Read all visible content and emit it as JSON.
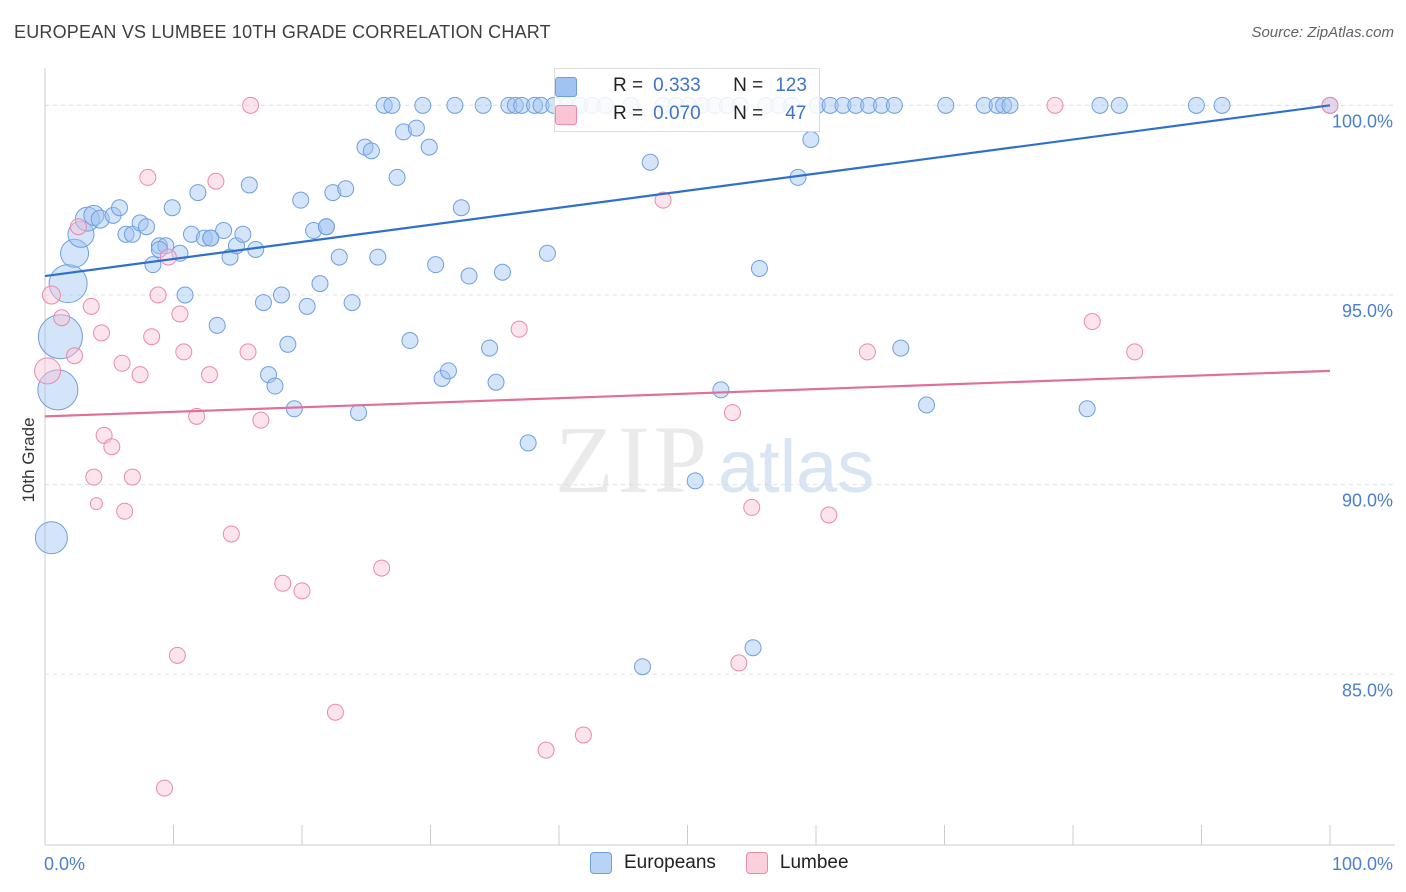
{
  "title": "EUROPEAN VS LUMBEE 10TH GRADE CORRELATION CHART",
  "source": "Source: ZipAtlas.com",
  "watermark": {
    "zip": "ZIP",
    "atlas": "atlas"
  },
  "legend_top": {
    "rows": [
      {
        "r_label": "R =",
        "r_value": "0.333",
        "n_label": "N =",
        "n_value": "123",
        "color": "#9fc3f2",
        "border": "#6f9fe0"
      },
      {
        "r_label": "R =",
        "r_value": "0.070",
        "n_label": "N =",
        "n_value": "47",
        "color": "#f9c4d4",
        "border": "#eb8aa8"
      }
    ]
  },
  "legend_bottom": [
    {
      "label": "Europeans",
      "color": "#b9d3f5",
      "border": "#6f9fe0"
    },
    {
      "label": "Lumbee",
      "color": "#fbd0dd",
      "border": "#eb8aa8"
    }
  ],
  "colors": {
    "blue_line": "#2f6fd0",
    "pink_line": "#e0709a",
    "grid": "#dde3ea"
  },
  "chart_data": {
    "type": "scatter",
    "title": "EUROPEAN VS LUMBEE 10TH GRADE CORRELATION CHART",
    "xlabel": "",
    "ylabel": "10th Grade",
    "xlim": [
      0,
      100
    ],
    "ylim": [
      80.5,
      100.8
    ],
    "x_tick_labels": [
      "0.0%",
      "100.0%"
    ],
    "y_ticks": [
      85,
      90,
      95,
      100
    ],
    "y_tick_labels": [
      "85.0%",
      "90.0%",
      "95.0%",
      "100.0%"
    ],
    "grid": true,
    "series": [
      {
        "name": "Europeans",
        "trend": {
          "x": [
            0,
            100
          ],
          "y": [
            95.5,
            100.0
          ]
        },
        "points": [
          [
            0.5,
            88.6,
            1.6
          ],
          [
            1.0,
            92.5,
            2.0
          ],
          [
            1.2,
            93.9,
            2.2
          ],
          [
            1.8,
            95.3,
            1.9
          ],
          [
            2.3,
            96.1,
            1.4
          ],
          [
            2.8,
            96.6,
            1.3
          ],
          [
            3.3,
            97.0,
            1.2
          ],
          [
            3.8,
            97.1,
            1.0
          ],
          [
            4.3,
            97.0,
            0.9
          ],
          [
            5.3,
            97.1,
            0.8
          ],
          [
            5.8,
            97.3,
            0.8
          ],
          [
            6.3,
            96.6,
            0.8
          ],
          [
            6.8,
            96.6,
            0.8
          ],
          [
            7.4,
            96.9,
            0.8
          ],
          [
            7.9,
            96.8,
            0.8
          ],
          [
            8.4,
            95.8,
            0.8
          ],
          [
            8.9,
            96.3,
            0.8
          ],
          [
            9.4,
            96.3,
            0.8
          ],
          [
            9.9,
            97.3,
            0.8
          ],
          [
            10.5,
            96.1,
            0.8
          ],
          [
            10.9,
            95.0,
            0.8
          ],
          [
            11.4,
            96.6,
            0.8
          ],
          [
            11.9,
            97.7,
            0.8
          ],
          [
            12.4,
            96.5,
            0.8
          ],
          [
            12.9,
            96.5,
            0.8
          ],
          [
            13.4,
            94.2,
            0.8
          ],
          [
            13.9,
            96.7,
            0.8
          ],
          [
            14.4,
            96.0,
            0.8
          ],
          [
            14.9,
            96.3,
            0.8
          ],
          [
            15.4,
            96.6,
            0.8
          ],
          [
            15.9,
            97.9,
            0.8
          ],
          [
            16.4,
            96.2,
            0.8
          ],
          [
            17.0,
            94.8,
            0.8
          ],
          [
            17.4,
            92.9,
            0.8
          ],
          [
            17.9,
            92.6,
            0.8
          ],
          [
            18.4,
            95.0,
            0.8
          ],
          [
            18.9,
            93.7,
            0.8
          ],
          [
            19.4,
            92.0,
            0.8
          ],
          [
            19.9,
            97.5,
            0.8
          ],
          [
            20.4,
            94.7,
            0.8
          ],
          [
            20.9,
            96.7,
            0.8
          ],
          [
            21.4,
            95.3,
            0.8
          ],
          [
            21.9,
            96.8,
            0.8
          ],
          [
            22.4,
            97.7,
            0.8
          ],
          [
            22.9,
            96.0,
            0.8
          ],
          [
            23.4,
            97.8,
            0.8
          ],
          [
            23.9,
            94.8,
            0.8
          ],
          [
            24.4,
            91.9,
            0.8
          ],
          [
            24.9,
            98.9,
            0.8
          ],
          [
            25.4,
            98.8,
            0.8
          ],
          [
            25.9,
            96.0,
            0.8
          ],
          [
            26.4,
            100.0,
            0.8
          ],
          [
            27.0,
            100.0,
            0.8
          ],
          [
            27.4,
            98.1,
            0.8
          ],
          [
            27.9,
            99.3,
            0.8
          ],
          [
            28.4,
            93.8,
            0.8
          ],
          [
            28.9,
            99.4,
            0.8
          ],
          [
            29.4,
            100.0,
            0.8
          ],
          [
            29.9,
            98.9,
            0.8
          ],
          [
            30.4,
            95.8,
            0.8
          ],
          [
            30.9,
            92.8,
            0.8
          ],
          [
            31.4,
            93.0,
            0.8
          ],
          [
            31.9,
            100.0,
            0.8
          ],
          [
            32.4,
            97.3,
            0.8
          ],
          [
            33.0,
            95.5,
            0.8
          ],
          [
            34.1,
            100.0,
            0.8
          ],
          [
            34.6,
            93.6,
            0.8
          ],
          [
            35.1,
            92.7,
            0.8
          ],
          [
            35.6,
            95.6,
            0.8
          ],
          [
            36.1,
            100.0,
            0.8
          ],
          [
            36.6,
            100.0,
            0.8
          ],
          [
            37.1,
            100.0,
            0.8
          ],
          [
            37.6,
            91.1,
            0.8
          ],
          [
            38.1,
            100.0,
            0.8
          ],
          [
            38.6,
            100.0,
            0.8
          ],
          [
            39.1,
            96.1,
            0.8
          ],
          [
            39.6,
            100.0,
            0.8
          ],
          [
            40.6,
            100.0,
            0.8
          ],
          [
            41.6,
            100.0,
            0.8
          ],
          [
            42.6,
            100.0,
            0.8
          ],
          [
            43.6,
            100.0,
            0.8
          ],
          [
            45.6,
            100.0,
            0.8
          ],
          [
            46.5,
            85.2,
            0.8
          ],
          [
            47.1,
            98.5,
            0.8
          ],
          [
            48.1,
            100.0,
            0.8
          ],
          [
            49.1,
            100.0,
            0.8
          ],
          [
            50.1,
            100.0,
            0.8
          ],
          [
            50.6,
            90.1,
            0.8
          ],
          [
            51.1,
            100.0,
            0.8
          ],
          [
            52.1,
            100.0,
            0.8
          ],
          [
            52.6,
            92.5,
            0.8
          ],
          [
            53.1,
            100.0,
            0.8
          ],
          [
            54.1,
            100.0,
            0.8
          ],
          [
            55.1,
            85.7,
            0.8
          ],
          [
            55.6,
            95.7,
            0.8
          ],
          [
            56.1,
            100.0,
            0.8
          ],
          [
            57.1,
            100.0,
            0.8
          ],
          [
            58.1,
            100.0,
            0.8
          ],
          [
            58.6,
            98.1,
            0.8
          ],
          [
            60.1,
            100.0,
            0.8
          ],
          [
            61.1,
            100.0,
            0.8
          ],
          [
            62.1,
            100.0,
            0.8
          ],
          [
            63.1,
            100.0,
            0.8
          ],
          [
            64.1,
            100.0,
            0.8
          ],
          [
            65.1,
            100.0,
            0.8
          ],
          [
            66.1,
            100.0,
            0.8
          ],
          [
            66.6,
            93.6,
            0.8
          ],
          [
            68.6,
            92.1,
            0.8
          ],
          [
            70.1,
            100.0,
            0.8
          ],
          [
            73.1,
            100.0,
            0.8
          ],
          [
            74.1,
            100.0,
            0.8
          ],
          [
            74.6,
            100.0,
            0.8
          ],
          [
            75.1,
            100.0,
            0.8
          ],
          [
            81.1,
            92.0,
            0.8
          ],
          [
            82.1,
            100.0,
            0.8
          ],
          [
            83.6,
            100.0,
            0.8
          ],
          [
            89.6,
            100.0,
            0.8
          ],
          [
            91.6,
            100.0,
            0.8
          ],
          [
            100.0,
            100.0,
            0.8
          ],
          [
            59.6,
            99.1,
            0.8
          ],
          [
            8.9,
            96.2,
            0.8
          ],
          [
            12.9,
            96.5,
            0.8
          ],
          [
            21.9,
            96.8,
            0.8
          ]
        ]
      },
      {
        "name": "Lumbee",
        "trend": {
          "x": [
            0,
            100
          ],
          "y": [
            91.8,
            93.0
          ]
        },
        "points": [
          [
            0.2,
            93.0,
            1.3
          ],
          [
            0.5,
            95.0,
            0.9
          ],
          [
            1.3,
            94.4,
            0.8
          ],
          [
            2.3,
            93.4,
            0.8
          ],
          [
            2.6,
            96.8,
            0.8
          ],
          [
            3.6,
            94.7,
            0.8
          ],
          [
            3.8,
            90.2,
            0.8
          ],
          [
            4.4,
            94.0,
            0.8
          ],
          [
            4.6,
            91.3,
            0.8
          ],
          [
            5.2,
            91.0,
            0.8
          ],
          [
            6.0,
            93.2,
            0.8
          ],
          [
            6.2,
            89.3,
            0.8
          ],
          [
            6.8,
            90.2,
            0.8
          ],
          [
            7.4,
            92.9,
            0.8
          ],
          [
            8.0,
            98.1,
            0.8
          ],
          [
            8.3,
            93.9,
            0.8
          ],
          [
            8.8,
            95.0,
            0.8
          ],
          [
            9.3,
            82.0,
            0.8
          ],
          [
            9.6,
            96.0,
            0.8
          ],
          [
            10.3,
            85.5,
            0.8
          ],
          [
            10.8,
            93.5,
            0.8
          ],
          [
            11.8,
            91.8,
            0.8
          ],
          [
            12.8,
            92.9,
            0.8
          ],
          [
            13.3,
            98.0,
            0.8
          ],
          [
            14.5,
            88.7,
            0.8
          ],
          [
            15.8,
            93.5,
            0.8
          ],
          [
            16.8,
            91.7,
            0.8
          ],
          [
            18.5,
            87.4,
            0.8
          ],
          [
            20.0,
            87.2,
            0.8
          ],
          [
            22.6,
            84.0,
            0.8
          ],
          [
            26.2,
            87.8,
            0.8
          ],
          [
            36.9,
            94.1,
            0.8
          ],
          [
            39.0,
            83.0,
            0.8
          ],
          [
            41.9,
            83.4,
            0.8
          ],
          [
            48.1,
            97.5,
            0.8
          ],
          [
            53.5,
            91.9,
            0.8
          ],
          [
            54.0,
            85.3,
            0.8
          ],
          [
            55.0,
            89.4,
            0.8
          ],
          [
            61.0,
            89.2,
            0.8
          ],
          [
            64.0,
            93.5,
            0.8
          ],
          [
            78.6,
            100.0,
            0.8
          ],
          [
            81.5,
            94.3,
            0.8
          ],
          [
            84.8,
            93.5,
            0.8
          ],
          [
            100.0,
            100.0,
            0.8
          ],
          [
            16.0,
            100.0,
            0.8
          ],
          [
            10.5,
            94.5,
            0.8
          ],
          [
            4.0,
            89.5,
            0.6
          ]
        ]
      }
    ]
  }
}
